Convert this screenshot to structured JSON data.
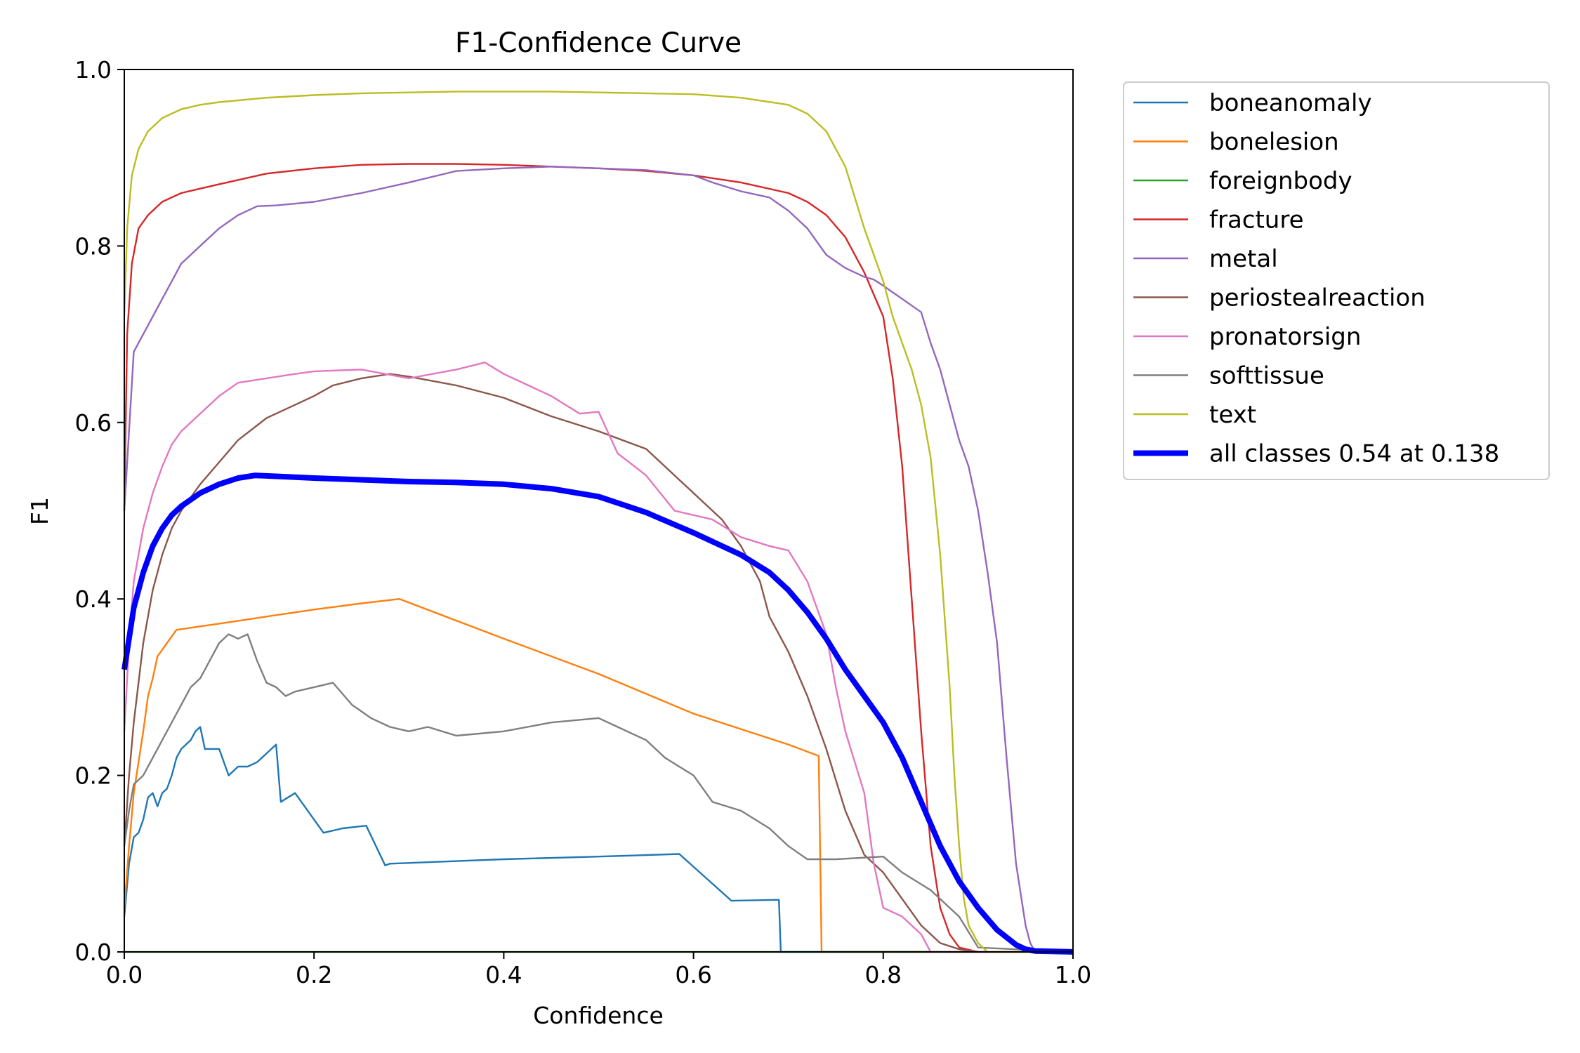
{
  "chart_data": {
    "type": "line",
    "title": "F1-Confidence Curve",
    "xlabel": "Confidence",
    "ylabel": "F1",
    "xlim": [
      0,
      1
    ],
    "ylim": [
      0,
      1
    ],
    "xticks": [
      {
        "value": 0.0,
        "label": "0.0"
      },
      {
        "value": 0.2,
        "label": "0.2"
      },
      {
        "value": 0.4,
        "label": "0.4"
      },
      {
        "value": 0.6,
        "label": "0.6"
      },
      {
        "value": 0.8,
        "label": "0.8"
      },
      {
        "value": 1.0,
        "label": "1.0"
      }
    ],
    "yticks": [
      {
        "value": 0.0,
        "label": "0.0"
      },
      {
        "value": 0.2,
        "label": "0.2"
      },
      {
        "value": 0.4,
        "label": "0.4"
      },
      {
        "value": 0.6,
        "label": "0.6"
      },
      {
        "value": 0.8,
        "label": "0.8"
      },
      {
        "value": 1.0,
        "label": "1.0"
      }
    ],
    "grid": false,
    "legend_position": "outside-top-right",
    "series": [
      {
        "name": "boneanomaly",
        "color": "#1f77b4",
        "emphasis": false,
        "x": [
          0,
          0.005,
          0.01,
          0.015,
          0.02,
          0.025,
          0.03,
          0.035,
          0.04,
          0.045,
          0.05,
          0.055,
          0.06,
          0.07,
          0.075,
          0.08,
          0.085,
          0.1,
          0.11,
          0.12,
          0.13,
          0.14,
          0.155,
          0.16,
          0.165,
          0.18,
          0.21,
          0.23,
          0.255,
          0.275,
          0.28,
          0.4,
          0.5,
          0.585,
          0.64,
          0.69,
          0.692,
          0.735,
          1.0
        ],
        "y": [
          0.04,
          0.1,
          0.13,
          0.135,
          0.15,
          0.175,
          0.18,
          0.165,
          0.18,
          0.185,
          0.2,
          0.22,
          0.23,
          0.24,
          0.25,
          0.255,
          0.23,
          0.23,
          0.2,
          0.21,
          0.21,
          0.215,
          0.23,
          0.235,
          0.17,
          0.18,
          0.135,
          0.14,
          0.143,
          0.098,
          0.1,
          0.105,
          0.108,
          0.111,
          0.058,
          0.059,
          0.0,
          0.0,
          0.0
        ]
      },
      {
        "name": "bonelesion",
        "color": "#ff7f0e",
        "emphasis": false,
        "x": [
          0,
          0.005,
          0.01,
          0.02,
          0.025,
          0.03,
          0.035,
          0.045,
          0.055,
          0.1,
          0.15,
          0.2,
          0.25,
          0.29,
          0.4,
          0.5,
          0.6,
          0.7,
          0.732,
          0.735,
          0.8,
          0.9,
          1.0
        ],
        "y": [
          0.05,
          0.12,
          0.18,
          0.25,
          0.29,
          0.31,
          0.335,
          0.35,
          0.365,
          0.372,
          0.38,
          0.388,
          0.395,
          0.4,
          0.355,
          0.315,
          0.27,
          0.235,
          0.222,
          0.0,
          0.0,
          0.0,
          0.0
        ]
      },
      {
        "name": "foreignbody",
        "color": "#2ca02c",
        "emphasis": false,
        "x": [
          0,
          1.0
        ],
        "y": [
          0.0,
          0.0
        ]
      },
      {
        "name": "fracture",
        "color": "#d62728",
        "emphasis": false,
        "x": [
          0,
          0.003,
          0.008,
          0.015,
          0.025,
          0.04,
          0.06,
          0.08,
          0.1,
          0.15,
          0.2,
          0.25,
          0.3,
          0.35,
          0.4,
          0.45,
          0.5,
          0.55,
          0.6,
          0.65,
          0.7,
          0.72,
          0.74,
          0.76,
          0.78,
          0.8,
          0.81,
          0.82,
          0.83,
          0.84,
          0.85,
          0.86,
          0.87,
          0.88,
          0.9,
          1.0
        ],
        "y": [
          0.5,
          0.7,
          0.78,
          0.82,
          0.835,
          0.85,
          0.86,
          0.865,
          0.87,
          0.882,
          0.888,
          0.892,
          0.893,
          0.893,
          0.892,
          0.89,
          0.888,
          0.885,
          0.88,
          0.872,
          0.86,
          0.85,
          0.835,
          0.81,
          0.77,
          0.72,
          0.65,
          0.55,
          0.4,
          0.25,
          0.12,
          0.05,
          0.02,
          0.005,
          0.0,
          0.0
        ]
      },
      {
        "name": "metal",
        "color": "#9467bd",
        "emphasis": false,
        "x": [
          0,
          0.01,
          0.02,
          0.03,
          0.04,
          0.05,
          0.06,
          0.07,
          0.08,
          0.09,
          0.1,
          0.12,
          0.14,
          0.16,
          0.18,
          0.2,
          0.25,
          0.3,
          0.35,
          0.4,
          0.45,
          0.5,
          0.55,
          0.6,
          0.62,
          0.65,
          0.68,
          0.7,
          0.72,
          0.74,
          0.76,
          0.78,
          0.79,
          0.8,
          0.82,
          0.84,
          0.85,
          0.86,
          0.87,
          0.88,
          0.89,
          0.9,
          0.91,
          0.92,
          0.93,
          0.94,
          0.95,
          0.955,
          0.96,
          1.0
        ],
        "y": [
          0.5,
          0.68,
          0.7,
          0.72,
          0.74,
          0.76,
          0.78,
          0.79,
          0.8,
          0.81,
          0.82,
          0.835,
          0.845,
          0.846,
          0.848,
          0.85,
          0.86,
          0.872,
          0.885,
          0.888,
          0.89,
          0.888,
          0.886,
          0.88,
          0.872,
          0.862,
          0.855,
          0.84,
          0.82,
          0.79,
          0.775,
          0.765,
          0.762,
          0.755,
          0.74,
          0.725,
          0.69,
          0.66,
          0.62,
          0.58,
          0.55,
          0.5,
          0.43,
          0.35,
          0.22,
          0.1,
          0.03,
          0.01,
          0.0,
          0.0
        ]
      },
      {
        "name": "periostealreaction",
        "color": "#8c564b",
        "emphasis": false,
        "x": [
          0,
          0.005,
          0.01,
          0.02,
          0.03,
          0.04,
          0.05,
          0.06,
          0.08,
          0.1,
          0.12,
          0.15,
          0.18,
          0.2,
          0.22,
          0.25,
          0.28,
          0.3,
          0.35,
          0.4,
          0.45,
          0.5,
          0.55,
          0.6,
          0.63,
          0.65,
          0.67,
          0.68,
          0.7,
          0.72,
          0.74,
          0.76,
          0.78,
          0.8,
          0.82,
          0.84,
          0.86,
          0.88,
          0.9,
          1.0
        ],
        "y": [
          0.12,
          0.2,
          0.26,
          0.35,
          0.41,
          0.45,
          0.48,
          0.5,
          0.53,
          0.555,
          0.58,
          0.605,
          0.62,
          0.63,
          0.642,
          0.65,
          0.655,
          0.652,
          0.642,
          0.628,
          0.607,
          0.59,
          0.57,
          0.52,
          0.49,
          0.46,
          0.42,
          0.38,
          0.34,
          0.29,
          0.23,
          0.16,
          0.11,
          0.09,
          0.06,
          0.03,
          0.01,
          0.003,
          0.0,
          0.0
        ]
      },
      {
        "name": "pronatorsign",
        "color": "#e377c2",
        "emphasis": false,
        "x": [
          0,
          0.005,
          0.01,
          0.02,
          0.03,
          0.04,
          0.05,
          0.06,
          0.08,
          0.1,
          0.12,
          0.15,
          0.18,
          0.2,
          0.25,
          0.3,
          0.35,
          0.38,
          0.4,
          0.45,
          0.48,
          0.5,
          0.52,
          0.55,
          0.58,
          0.62,
          0.65,
          0.68,
          0.7,
          0.72,
          0.74,
          0.75,
          0.76,
          0.78,
          0.79,
          0.8,
          0.81,
          0.82,
          0.84,
          0.85,
          1.0
        ],
        "y": [
          0.25,
          0.35,
          0.42,
          0.48,
          0.52,
          0.55,
          0.575,
          0.59,
          0.61,
          0.63,
          0.645,
          0.65,
          0.655,
          0.658,
          0.66,
          0.65,
          0.66,
          0.668,
          0.655,
          0.63,
          0.61,
          0.612,
          0.565,
          0.54,
          0.5,
          0.49,
          0.47,
          0.46,
          0.455,
          0.42,
          0.36,
          0.3,
          0.25,
          0.18,
          0.1,
          0.05,
          0.045,
          0.04,
          0.02,
          0.0,
          0.0
        ]
      },
      {
        "name": "softtissue",
        "color": "#7f7f7f",
        "emphasis": false,
        "x": [
          0,
          0.005,
          0.01,
          0.02,
          0.03,
          0.04,
          0.05,
          0.06,
          0.07,
          0.08,
          0.09,
          0.1,
          0.11,
          0.12,
          0.13,
          0.14,
          0.15,
          0.16,
          0.17,
          0.18,
          0.2,
          0.22,
          0.24,
          0.26,
          0.28,
          0.3,
          0.32,
          0.35,
          0.4,
          0.45,
          0.5,
          0.52,
          0.55,
          0.57,
          0.6,
          0.62,
          0.65,
          0.68,
          0.7,
          0.72,
          0.75,
          0.8,
          0.82,
          0.85,
          0.88,
          0.9,
          1.0
        ],
        "y": [
          0.12,
          0.16,
          0.19,
          0.2,
          0.22,
          0.24,
          0.26,
          0.28,
          0.3,
          0.31,
          0.33,
          0.35,
          0.36,
          0.355,
          0.36,
          0.33,
          0.305,
          0.3,
          0.29,
          0.295,
          0.3,
          0.305,
          0.28,
          0.265,
          0.255,
          0.25,
          0.255,
          0.245,
          0.25,
          0.26,
          0.265,
          0.255,
          0.24,
          0.22,
          0.2,
          0.17,
          0.16,
          0.14,
          0.12,
          0.105,
          0.105,
          0.108,
          0.09,
          0.07,
          0.04,
          0.005,
          0.0
        ]
      },
      {
        "name": "text",
        "color": "#bcbd22",
        "emphasis": false,
        "x": [
          0,
          0.003,
          0.008,
          0.015,
          0.025,
          0.04,
          0.06,
          0.08,
          0.1,
          0.15,
          0.2,
          0.25,
          0.3,
          0.35,
          0.4,
          0.45,
          0.5,
          0.55,
          0.6,
          0.65,
          0.7,
          0.72,
          0.74,
          0.76,
          0.78,
          0.8,
          0.81,
          0.82,
          0.83,
          0.84,
          0.85,
          0.86,
          0.87,
          0.875,
          0.88,
          0.885,
          0.89,
          0.9,
          0.91,
          1.0
        ],
        "y": [
          0.72,
          0.82,
          0.88,
          0.91,
          0.93,
          0.945,
          0.955,
          0.96,
          0.963,
          0.968,
          0.971,
          0.973,
          0.974,
          0.975,
          0.975,
          0.975,
          0.974,
          0.973,
          0.972,
          0.968,
          0.96,
          0.95,
          0.93,
          0.89,
          0.82,
          0.76,
          0.72,
          0.69,
          0.66,
          0.62,
          0.56,
          0.45,
          0.3,
          0.2,
          0.12,
          0.06,
          0.03,
          0.01,
          0.0,
          0.0
        ]
      },
      {
        "name": "all classes 0.54 at 0.138",
        "color": "#0000ff",
        "emphasis": true,
        "x": [
          0,
          0.01,
          0.02,
          0.03,
          0.04,
          0.05,
          0.06,
          0.08,
          0.1,
          0.12,
          0.138,
          0.16,
          0.2,
          0.25,
          0.3,
          0.35,
          0.4,
          0.45,
          0.5,
          0.55,
          0.6,
          0.65,
          0.68,
          0.7,
          0.72,
          0.74,
          0.76,
          0.78,
          0.8,
          0.82,
          0.84,
          0.86,
          0.88,
          0.9,
          0.92,
          0.94,
          0.95,
          0.96,
          1.0
        ],
        "y": [
          0.32,
          0.39,
          0.43,
          0.46,
          0.48,
          0.495,
          0.505,
          0.52,
          0.53,
          0.537,
          0.54,
          0.539,
          0.537,
          0.535,
          0.533,
          0.532,
          0.53,
          0.525,
          0.516,
          0.498,
          0.475,
          0.45,
          0.43,
          0.41,
          0.385,
          0.355,
          0.32,
          0.29,
          0.26,
          0.22,
          0.17,
          0.12,
          0.08,
          0.05,
          0.025,
          0.008,
          0.003,
          0.001,
          0.0
        ]
      }
    ]
  }
}
